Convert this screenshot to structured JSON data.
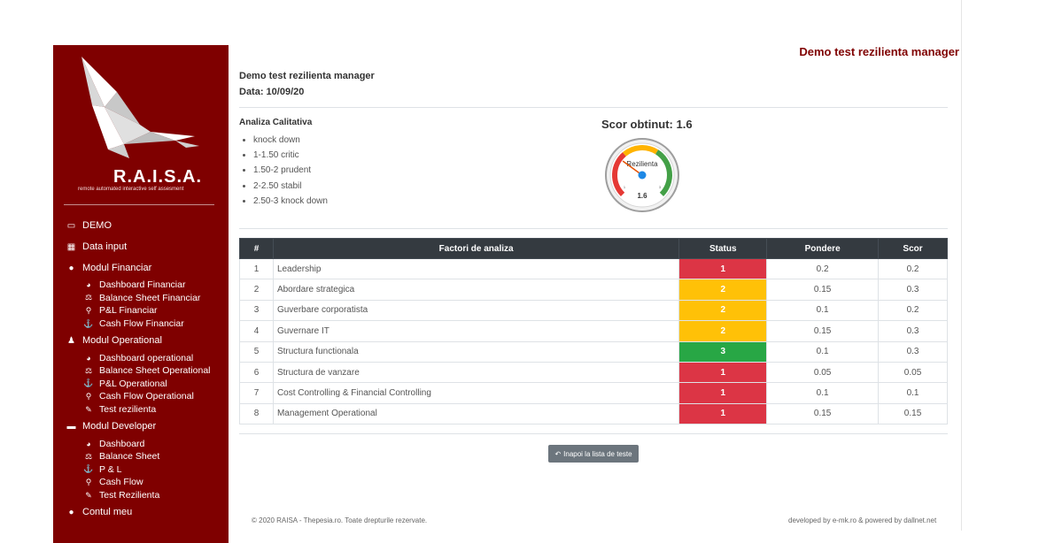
{
  "brand": {
    "name": "R.A.I.S.A.",
    "tagline": "remote automated interactive self assesment"
  },
  "header": {
    "title": "Demo test rezilienta manager"
  },
  "sidebar": {
    "items": [
      {
        "label": "DEMO",
        "icon": "id-card-icon"
      },
      {
        "label": "Data input",
        "icon": "table-icon"
      },
      {
        "label": "Modul Financiar",
        "icon": "user-tie-icon",
        "children": [
          {
            "label": "Dashboard Financiar",
            "icon": "tachometer-icon"
          },
          {
            "label": "Balance Sheet Financiar",
            "icon": "balance-scale-icon"
          },
          {
            "label": "P&L Financiar",
            "icon": "search-icon"
          },
          {
            "label": "Cash Flow Financiar",
            "icon": "anchor-icon"
          }
        ]
      },
      {
        "label": "Modul Operational",
        "icon": "operator-icon",
        "children": [
          {
            "label": "Dashboard operational",
            "icon": "tachometer-icon"
          },
          {
            "label": "Balance Sheet Operational",
            "icon": "balance-scale-icon"
          },
          {
            "label": "P&L Operational",
            "icon": "anchor-icon"
          },
          {
            "label": "Cash Flow Operational",
            "icon": "search-icon"
          },
          {
            "label": "Test rezilienta",
            "icon": "edit-icon"
          }
        ]
      },
      {
        "label": "Modul Developer",
        "icon": "window-icon",
        "children": [
          {
            "label": "Dashboard",
            "icon": "tachometer-icon"
          },
          {
            "label": "Balance Sheet",
            "icon": "balance-scale-icon"
          },
          {
            "label": "P & L",
            "icon": "anchor-icon"
          },
          {
            "label": "Cash Flow",
            "icon": "search-icon"
          },
          {
            "label": "Test Rezilienta",
            "icon": "edit-icon"
          }
        ]
      },
      {
        "label": "Contul meu",
        "icon": "user-icon"
      }
    ]
  },
  "main": {
    "test_name": "Demo test rezilienta manager",
    "date": "Data: 10/09/20",
    "analysis_title": "Analiza Calitativa",
    "analysis_items": [
      "knock down",
      "1-1.50 critic",
      "1.50-2 prudent",
      "2-2.50 stabil",
      "2.50-3 knock down"
    ],
    "score_title": "Scor obtinut: 1.6",
    "gauge": {
      "label": "Rezilienta",
      "value": 1.6,
      "value_text": "1.6",
      "min": 1,
      "max": 3,
      "min_label": "1",
      "max_label": "3",
      "colors": {
        "low": "#e53935",
        "mid": "#ffb300",
        "high": "#43a047"
      }
    },
    "table": {
      "headers": [
        "#",
        "Factori de analiza",
        "Status",
        "Pondere",
        "Scor"
      ],
      "rows": [
        {
          "num": "1",
          "factor": "Leadership",
          "status": "1",
          "status_color": "#dc3545",
          "weight": "0.2",
          "score": "0.2"
        },
        {
          "num": "2",
          "factor": "Abordare strategica",
          "status": "2",
          "status_color": "#ffc107",
          "weight": "0.15",
          "score": "0.3"
        },
        {
          "num": "3",
          "factor": "Guverbare corporatista",
          "status": "2",
          "status_color": "#ffc107",
          "weight": "0.1",
          "score": "0.2"
        },
        {
          "num": "4",
          "factor": "Guvernare IT",
          "status": "2",
          "status_color": "#ffc107",
          "weight": "0.15",
          "score": "0.3"
        },
        {
          "num": "5",
          "factor": "Structura functionala",
          "status": "3",
          "status_color": "#28a745",
          "weight": "0.1",
          "score": "0.3"
        },
        {
          "num": "6",
          "factor": "Structura de vanzare",
          "status": "1",
          "status_color": "#dc3545",
          "weight": "0.05",
          "score": "0.05"
        },
        {
          "num": "7",
          "factor": "Cost Controlling & Financial Controlling",
          "status": "1",
          "status_color": "#dc3545",
          "weight": "0.1",
          "score": "0.1"
        },
        {
          "num": "8",
          "factor": "Management Operational",
          "status": "1",
          "status_color": "#dc3545",
          "weight": "0.15",
          "score": "0.15"
        }
      ]
    },
    "back_button": "Inapoi la lista de teste"
  },
  "footer": {
    "left": "© 2020 RAISA - Thepesia.ro. Toate drepturile rezervate.",
    "right": "developed by e-mk.ro & powered by dallnet.net"
  }
}
